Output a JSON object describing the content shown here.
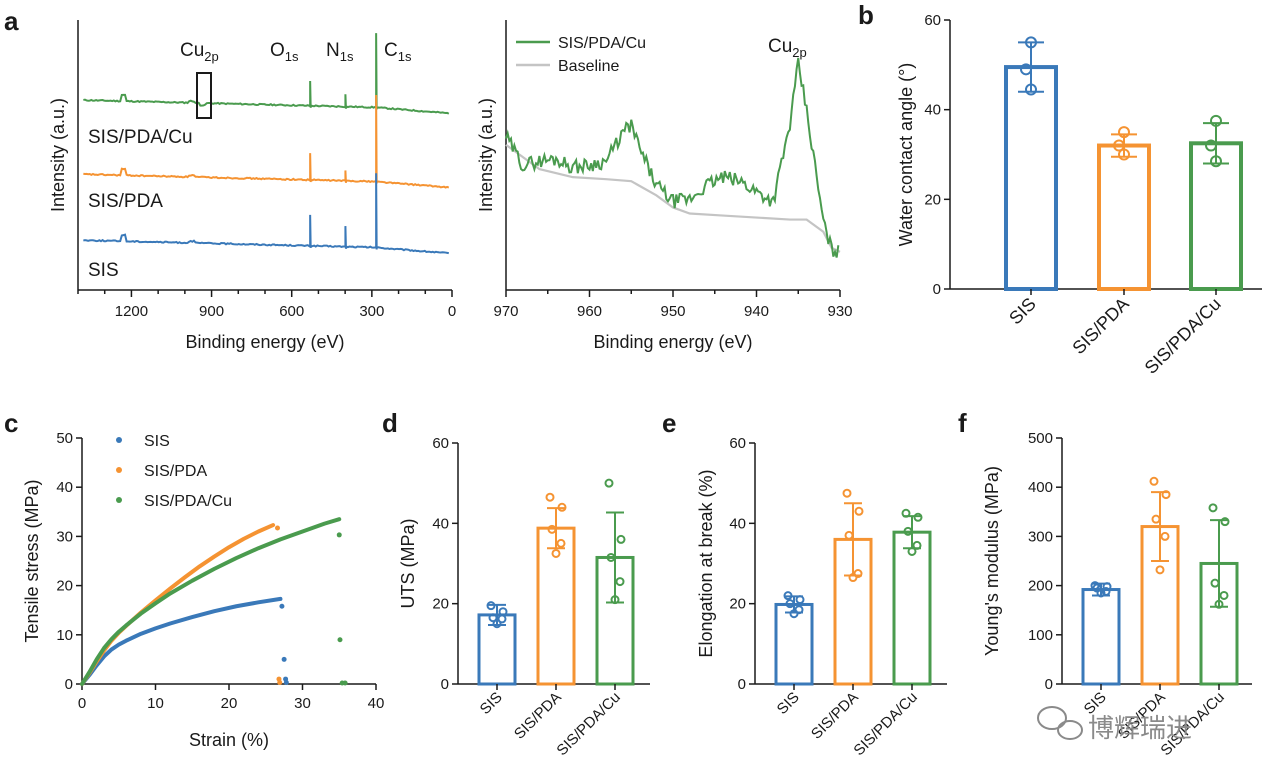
{
  "panels": {
    "a": "a",
    "b": "b",
    "c": "c",
    "d": "d",
    "e": "e",
    "f": "f"
  },
  "colors": {
    "blue": "#3a79b9",
    "orange": "#f59332",
    "green": "#4a9b4e",
    "gray": "#c4c4c4",
    "axis": "#1a1a1a"
  },
  "watermark": "博辉瑞进",
  "chart_data": [
    {
      "id": "a-survey",
      "type": "line",
      "xlabel": "Binding energy (eV)",
      "ylabel": "Intensity (a.u.)",
      "xlim": [
        1400,
        0
      ],
      "xticks": [
        1200,
        900,
        600,
        300,
        0
      ],
      "peaks": [
        {
          "main": "Cu",
          "sub": "2p",
          "ev": 933
        },
        {
          "main": "O",
          "sub": "1s",
          "ev": 531
        },
        {
          "main": "N",
          "sub": "1s",
          "ev": 399
        },
        {
          "main": "C",
          "sub": "1s",
          "ev": 284
        }
      ],
      "series": [
        {
          "name": "SIS/PDA/Cu",
          "color": "#4a9b4e",
          "heights": {
            "baseline": 0.78,
            "O": 0.12,
            "N": 0.06,
            "C": 0.36
          }
        },
        {
          "name": "SIS/PDA",
          "color": "#f59332",
          "heights": {
            "baseline": 0.42,
            "O": 0.13,
            "N": 0.05,
            "C": 0.42
          }
        },
        {
          "name": "SIS",
          "color": "#3a79b9",
          "heights": {
            "baseline": 0.1,
            "O": 0.15,
            "N": 0.1,
            "C": 0.36
          }
        }
      ]
    },
    {
      "id": "a-hr",
      "type": "line",
      "xlabel": "Binding energy (eV)",
      "ylabel": "Intensity (a.u.)",
      "xlim": [
        970,
        930
      ],
      "xticks": [
        970,
        960,
        950,
        940,
        930
      ],
      "annotation": {
        "main": "Cu",
        "sub": "2p"
      },
      "series": [
        {
          "name": "SIS/PDA/Cu",
          "color": "#4a9b4e",
          "x": [
            970,
            968,
            966,
            964,
            962,
            960,
            958,
            956,
            955,
            954,
            952,
            950,
            948,
            946,
            944,
            942,
            940,
            938,
            936,
            935,
            934,
            932,
            931,
            930
          ],
          "y": [
            0.62,
            0.48,
            0.5,
            0.51,
            0.47,
            0.48,
            0.5,
            0.64,
            0.68,
            0.56,
            0.38,
            0.3,
            0.31,
            0.38,
            0.42,
            0.4,
            0.35,
            0.3,
            0.68,
            0.98,
            0.75,
            0.2,
            0.06,
            0.05
          ]
        },
        {
          "name": "Baseline",
          "color": "#c4c4c4",
          "x": [
            970,
            966,
            962,
            958,
            955,
            952,
            950,
            948,
            944,
            940,
            936,
            934,
            932,
            931,
            930
          ],
          "y": [
            0.58,
            0.46,
            0.42,
            0.41,
            0.4,
            0.33,
            0.27,
            0.24,
            0.23,
            0.22,
            0.21,
            0.21,
            0.15,
            0.07,
            0.05
          ]
        }
      ]
    },
    {
      "id": "b",
      "type": "bar",
      "ylabel": "Water contact angle (°)",
      "ylim": [
        0,
        60
      ],
      "yticks": [
        0,
        20,
        40,
        60
      ],
      "categories": [
        "SIS",
        "SIS/PDA",
        "SIS/PDA/Cu"
      ],
      "values": [
        49.5,
        32.0,
        32.5
      ],
      "errors": [
        5.5,
        2.5,
        4.5
      ],
      "points": [
        [
          55.0,
          49.0,
          44.5
        ],
        [
          35.0,
          32.0,
          30.0
        ],
        [
          37.5,
          32.0,
          28.5
        ]
      ]
    },
    {
      "id": "c",
      "type": "scatter",
      "xlabel": "Strain (%)",
      "ylabel": "Tensile stress (MPa)",
      "xlim": [
        0,
        40
      ],
      "ylim": [
        0,
        50
      ],
      "xticks": [
        0,
        10,
        20,
        30,
        40
      ],
      "yticks": [
        0,
        10,
        20,
        30,
        40,
        50
      ],
      "legend_position": "top-left",
      "series": [
        {
          "name": "SIS",
          "color": "#3a79b9",
          "x": [
            0,
            1,
            2,
            3,
            4,
            5,
            6,
            8,
            10,
            12,
            15,
            18,
            21,
            24,
            27
          ],
          "y": [
            0,
            1.8,
            3.8,
            5.6,
            7.0,
            8.0,
            8.8,
            10.2,
            11.3,
            12.3,
            13.6,
            14.8,
            15.8,
            16.6,
            17.3
          ],
          "break_points": [
            [
              27.2,
              15.8
            ],
            [
              27.5,
              5.0
            ],
            [
              27.7,
              1.0
            ],
            [
              27.8,
              0.3
            ]
          ]
        },
        {
          "name": "SIS/PDA",
          "color": "#f59332",
          "x": [
            0,
            1,
            2,
            3,
            4,
            5,
            6,
            8,
            10,
            12,
            14,
            16,
            18,
            20,
            22,
            24,
            26
          ],
          "y": [
            0,
            2.2,
            4.6,
            6.8,
            8.8,
            10.4,
            11.8,
            14.5,
            17.0,
            19.4,
            21.7,
            23.9,
            25.9,
            27.8,
            29.5,
            31.0,
            32.3
          ],
          "break_points": [
            [
              26.6,
              31.7
            ],
            [
              26.8,
              1.0
            ],
            [
              26.9,
              0.3
            ]
          ]
        },
        {
          "name": "SIS/PDA/Cu",
          "color": "#4a9b4e",
          "x": [
            0,
            1,
            2,
            3,
            4,
            5,
            6,
            8,
            10,
            12,
            15,
            18,
            21,
            24,
            27,
            30,
            33,
            35
          ],
          "y": [
            0,
            2.4,
            5.0,
            7.3,
            9.1,
            10.6,
            11.9,
            14.3,
            16.4,
            18.4,
            21.0,
            23.4,
            25.6,
            27.6,
            29.4,
            31.0,
            32.6,
            33.5
          ],
          "break_points": [
            [
              35.0,
              30.3
            ],
            [
              35.1,
              9.0
            ],
            [
              35.4,
              0.2
            ],
            [
              35.8,
              0.2
            ]
          ]
        }
      ]
    },
    {
      "id": "d",
      "type": "bar",
      "ylabel": "UTS (MPa)",
      "ylim": [
        0,
        60
      ],
      "yticks": [
        0,
        20,
        40,
        60
      ],
      "categories": [
        "SIS",
        "SIS/PDA",
        "SIS/PDA/Cu"
      ],
      "values": [
        17.2,
        38.8,
        31.5
      ],
      "errors": [
        2.5,
        5.0,
        11.2
      ],
      "points": [
        [
          19.5,
          18.0,
          16.5,
          16.2,
          15.0
        ],
        [
          46.5,
          44.0,
          38.5,
          35.0,
          32.5
        ],
        [
          50.0,
          36.0,
          31.5,
          25.5,
          21.0
        ]
      ]
    },
    {
      "id": "e",
      "type": "bar",
      "ylabel": "Elongation at break (%)",
      "ylim": [
        0,
        60
      ],
      "yticks": [
        0,
        20,
        40,
        60
      ],
      "categories": [
        "SIS",
        "SIS/PDA",
        "SIS/PDA/Cu"
      ],
      "values": [
        19.8,
        36.0,
        37.8
      ],
      "errors": [
        2.0,
        9.0,
        4.0
      ],
      "points": [
        [
          22.0,
          21.0,
          20.0,
          18.5,
          17.5
        ],
        [
          47.5,
          43.0,
          37.0,
          27.5,
          26.5
        ],
        [
          42.5,
          41.5,
          38.0,
          34.5,
          33.0
        ]
      ]
    },
    {
      "id": "f",
      "type": "bar",
      "ylabel": "Young's modulus (MPa)",
      "ylim": [
        0,
        500
      ],
      "yticks": [
        0,
        100,
        200,
        300,
        400,
        500
      ],
      "categories": [
        "SIS",
        "SIS/PDA",
        "SIS/PDA/Cu"
      ],
      "values": [
        192,
        320,
        245
      ],
      "errors": [
        12,
        70,
        88
      ],
      "points": [
        [
          200,
          198,
          195,
          188,
          185
        ],
        [
          412,
          385,
          335,
          300,
          232
        ],
        [
          358,
          330,
          205,
          180,
          162
        ]
      ]
    }
  ]
}
